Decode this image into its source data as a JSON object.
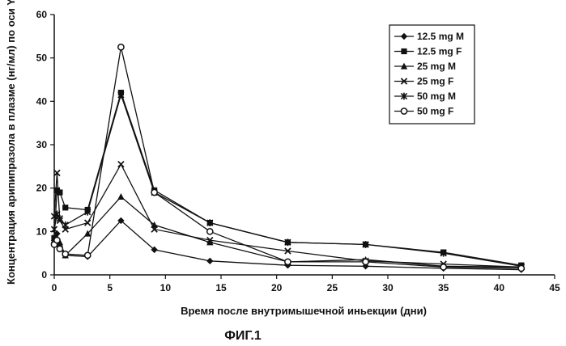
{
  "figure_caption": "ФИГ.1",
  "chart_data": {
    "type": "line",
    "title": "",
    "xlabel": "Время после внутримышечной иньекции (дни)",
    "ylabel": "Концентрация арипипразола в плазме (нг/мл) по оси Y",
    "xlim": [
      0,
      45
    ],
    "ylim": [
      0,
      60
    ],
    "xticks": [
      0,
      5,
      10,
      15,
      20,
      25,
      30,
      35,
      40,
      45
    ],
    "yticks": [
      0,
      10,
      20,
      30,
      40,
      50,
      60
    ],
    "grid": false,
    "legend_position": "top-right",
    "series": [
      {
        "name": "12.5 mg M",
        "marker": "diamond",
        "x": [
          0,
          0.25,
          0.5,
          1,
          3,
          6,
          9,
          14,
          21,
          28,
          35,
          42
        ],
        "y": [
          7.5,
          9.5,
          6.5,
          4.5,
          4.2,
          12.5,
          5.8,
          3.2,
          2.2,
          2.0,
          1.5,
          1.2
        ]
      },
      {
        "name": "12.5 mg F",
        "marker": "square",
        "x": [
          0,
          0.25,
          0.5,
          1,
          3,
          6,
          9,
          14,
          21,
          28,
          35,
          42
        ],
        "y": [
          8.5,
          19.5,
          19.0,
          15.5,
          15.0,
          42.0,
          19.5,
          12.0,
          7.5,
          7.0,
          5.2,
          2.2
        ]
      },
      {
        "name": "25 mg M",
        "marker": "triangle",
        "x": [
          0,
          0.25,
          0.5,
          1,
          3,
          6,
          9,
          14,
          21,
          28,
          35,
          42
        ],
        "y": [
          8.5,
          8.5,
          7.5,
          4.5,
          9.5,
          18.0,
          11.5,
          7.5,
          3.0,
          3.5,
          2.0,
          1.8
        ]
      },
      {
        "name": "25 mg F",
        "marker": "x",
        "x": [
          0,
          0.25,
          0.5,
          1,
          3,
          6,
          9,
          14,
          21,
          28,
          35,
          42
        ],
        "y": [
          13.5,
          23.5,
          12.5,
          10.5,
          12.0,
          25.5,
          10.5,
          8.0,
          5.5,
          3.2,
          2.5,
          1.8
        ]
      },
      {
        "name": "50 mg M",
        "marker": "asterisk",
        "x": [
          0,
          0.25,
          0.5,
          1,
          3,
          6,
          9,
          14,
          21,
          28,
          35,
          42
        ],
        "y": [
          10.5,
          14.0,
          13.0,
          11.5,
          14.5,
          41.5,
          19.0,
          12.0,
          7.5,
          7.0,
          5.0,
          2.0
        ]
      },
      {
        "name": "50 mg F",
        "marker": "circle",
        "x": [
          0,
          0.25,
          0.5,
          1,
          3,
          6,
          9,
          14,
          21,
          28,
          35,
          42
        ],
        "y": [
          7.0,
          8.0,
          6.0,
          4.8,
          4.5,
          52.5,
          19.0,
          10.0,
          3.0,
          3.0,
          1.8,
          1.5
        ]
      }
    ]
  }
}
